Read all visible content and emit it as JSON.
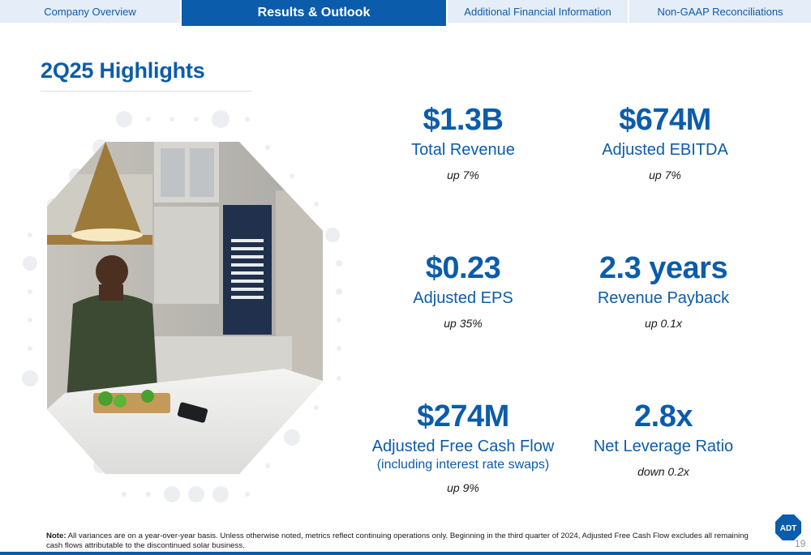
{
  "nav": {
    "tabs": [
      {
        "label": "Company Overview"
      },
      {
        "label": "Results & Outlook"
      },
      {
        "label": "Additional Financial Information"
      },
      {
        "label": "Non-GAAP Reconciliations"
      }
    ]
  },
  "title": "2Q25 Highlights",
  "metrics": {
    "total_revenue": {
      "value": "$1.3B",
      "label": "Total Revenue",
      "change": "up 7%"
    },
    "adjusted_ebitda": {
      "value": "$674M",
      "label": "Adjusted EBITDA",
      "change": "up 7%"
    },
    "adjusted_eps": {
      "value": "$0.23",
      "label": "Adjusted EPS",
      "change": "up 35%"
    },
    "revenue_payback": {
      "value": "2.3 years",
      "label": "Revenue Payback",
      "change": "up 0.1x"
    },
    "adjusted_fcf": {
      "value": "$274M",
      "label": "Adjusted Free Cash Flow",
      "sublabel": "(including interest rate swaps)",
      "change": "up 9%"
    },
    "net_leverage": {
      "value": "2.8x",
      "label": "Net Leverage Ratio",
      "change": "down 0.2x"
    }
  },
  "footer": {
    "note_label": "Note:",
    "note_text": " All variances are on a year-over-year basis. Unless otherwise noted, metrics reflect continuing operations only. Beginning in the third quarter of 2024, Adjusted Free Cash Flow excludes all remaining cash flows attributable to the discontinued solar business.",
    "logo_text": "ADT",
    "page_number": "19"
  },
  "colors": {
    "brand": "#0b5cab",
    "tab_bg": "#e4edf8",
    "dots": "#eceef1"
  }
}
